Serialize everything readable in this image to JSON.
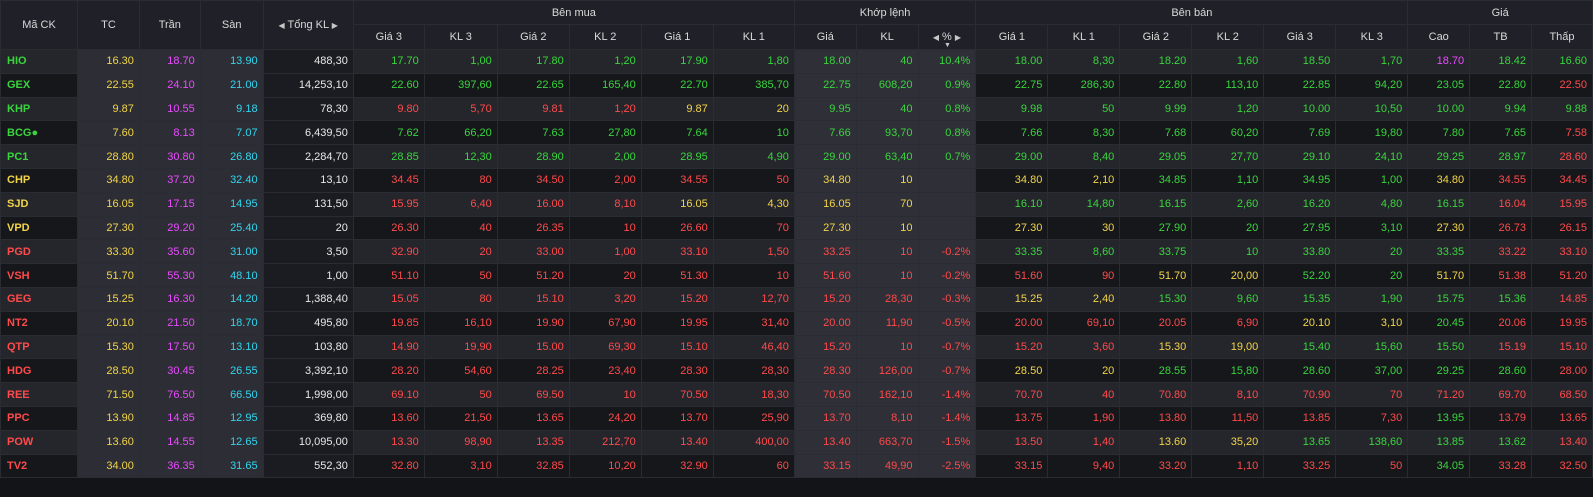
{
  "headers": {
    "symbol": "Mã CK",
    "ref": "TC",
    "ceil": "Trần",
    "floor": "Sàn",
    "total_vol": "Tổng KL",
    "buy": "Bên mua",
    "match": "Khớp lệnh",
    "sell": "Bên bán",
    "price": "Giá",
    "price3": "Giá 3",
    "vol3": "KL 3",
    "price2": "Giá 2",
    "vol2": "KL 2",
    "price1": "Giá 1",
    "vol1": "KL 1",
    "m_price": "Giá",
    "m_vol": "KL",
    "m_pct": "%",
    "high": "Cao",
    "avg": "TB",
    "low": "Thấp"
  },
  "colors": {
    "up": "#39d53d",
    "down": "#ff4a4a",
    "ref": "#f2d449",
    "ceil": "#e94bff",
    "floor": "#30d5ef"
  },
  "rows": [
    {
      "sym": [
        "HIO",
        "up"
      ],
      "tc": "16.30",
      "tran": "18.70",
      "san": "13.90",
      "tkl": "488,30",
      "b3": [
        "17.70",
        "1,00",
        "up"
      ],
      "b2": [
        "17.80",
        "1,20",
        "up"
      ],
      "b1": [
        "17.90",
        "1,80",
        "up"
      ],
      "m": [
        "18.00",
        "40",
        "10.4%",
        "up"
      ],
      "s1": [
        "18.00",
        "8,30",
        "up"
      ],
      "s2": [
        "18.20",
        "1,60",
        "up"
      ],
      "s3": [
        "18.50",
        "1,70",
        "up"
      ],
      "hi": [
        "18.70",
        "ceil"
      ],
      "tb": [
        "18.42",
        "up"
      ],
      "lo": [
        "16.60",
        "up"
      ]
    },
    {
      "sym": [
        "GEX",
        "up"
      ],
      "tc": "22.55",
      "tran": "24.10",
      "san": "21.00",
      "tkl": "14,253,10",
      "b3": [
        "22.60",
        "397,60",
        "up"
      ],
      "b2": [
        "22.65",
        "165,40",
        "up"
      ],
      "b1": [
        "22.70",
        "385,70",
        "up"
      ],
      "m": [
        "22.75",
        "608,20",
        "0.9%",
        "up"
      ],
      "s1": [
        "22.75",
        "286,30",
        "up"
      ],
      "s2": [
        "22.80",
        "113,10",
        "up"
      ],
      "s3": [
        "22.85",
        "94,20",
        "up"
      ],
      "hi": [
        "23.05",
        "up"
      ],
      "tb": [
        "22.80",
        "up"
      ],
      "lo": [
        "22.50",
        "down"
      ]
    },
    {
      "sym": [
        "KHP",
        "up"
      ],
      "tc": "9.87",
      "tran": "10.55",
      "san": "9.18",
      "tkl": "78,30",
      "b3": [
        "9.80",
        "5,70",
        "down"
      ],
      "b2": [
        "9.81",
        "1,20",
        "down"
      ],
      "b1": [
        "9.87",
        "20",
        "ref"
      ],
      "m": [
        "9.95",
        "40",
        "0.8%",
        "up"
      ],
      "s1": [
        "9.98",
        "50",
        "up"
      ],
      "s2": [
        "9.99",
        "1,20",
        "up"
      ],
      "s3": [
        "10.00",
        "10,50",
        "up"
      ],
      "hi": [
        "10.00",
        "up"
      ],
      "tb": [
        "9.94",
        "up"
      ],
      "lo": [
        "9.88",
        "up"
      ]
    },
    {
      "sym": [
        "BCG●",
        "up"
      ],
      "tc": "7.60",
      "tran": "8.13",
      "san": "7.07",
      "tkl": "6,439,50",
      "b3": [
        "7.62",
        "66,20",
        "up"
      ],
      "b2": [
        "7.63",
        "27,80",
        "up"
      ],
      "b1": [
        "7.64",
        "10",
        "up"
      ],
      "m": [
        "7.66",
        "93,70",
        "0.8%",
        "up"
      ],
      "s1": [
        "7.66",
        "8,30",
        "up"
      ],
      "s2": [
        "7.68",
        "60,20",
        "up"
      ],
      "s3": [
        "7.69",
        "19,80",
        "up"
      ],
      "hi": [
        "7.80",
        "up"
      ],
      "tb": [
        "7.65",
        "up"
      ],
      "lo": [
        "7.58",
        "down"
      ]
    },
    {
      "sym": [
        "PC1",
        "up"
      ],
      "tc": "28.80",
      "tran": "30.80",
      "san": "26.80",
      "tkl": "2,284,70",
      "b3": [
        "28.85",
        "12,30",
        "up"
      ],
      "b2": [
        "28.90",
        "2,00",
        "up"
      ],
      "b1": [
        "28.95",
        "4,90",
        "up"
      ],
      "m": [
        "29.00",
        "63,40",
        "0.7%",
        "up"
      ],
      "s1": [
        "29.00",
        "8,40",
        "up"
      ],
      "s2": [
        "29.05",
        "27,70",
        "up"
      ],
      "s3": [
        "29.10",
        "24,10",
        "up"
      ],
      "hi": [
        "29.25",
        "up"
      ],
      "tb": [
        "28.97",
        "up"
      ],
      "lo": [
        "28.60",
        "down"
      ]
    },
    {
      "sym": [
        "CHP",
        "ref"
      ],
      "tc": "34.80",
      "tran": "37.20",
      "san": "32.40",
      "tkl": "13,10",
      "b3": [
        "34.45",
        "80",
        "down"
      ],
      "b2": [
        "34.50",
        "2,00",
        "down"
      ],
      "b1": [
        "34.55",
        "50",
        "down"
      ],
      "m": [
        "34.80",
        "10",
        "",
        "ref"
      ],
      "s1": [
        "34.80",
        "2,10",
        "ref"
      ],
      "s2": [
        "34.85",
        "1,10",
        "up"
      ],
      "s3": [
        "34.95",
        "1,00",
        "up"
      ],
      "hi": [
        "34.80",
        "ref"
      ],
      "tb": [
        "34.55",
        "down"
      ],
      "lo": [
        "34.45",
        "down"
      ]
    },
    {
      "sym": [
        "SJD",
        "ref"
      ],
      "tc": "16.05",
      "tran": "17.15",
      "san": "14.95",
      "tkl": "131,50",
      "b3": [
        "15.95",
        "6,40",
        "down"
      ],
      "b2": [
        "16.00",
        "8,10",
        "down"
      ],
      "b1": [
        "16.05",
        "4,30",
        "ref"
      ],
      "m": [
        "16.05",
        "70",
        "",
        "ref"
      ],
      "s1": [
        "16.10",
        "14,80",
        "up"
      ],
      "s2": [
        "16.15",
        "2,60",
        "up"
      ],
      "s3": [
        "16.20",
        "4,80",
        "up"
      ],
      "hi": [
        "16.15",
        "up"
      ],
      "tb": [
        "16.04",
        "down"
      ],
      "lo": [
        "15.95",
        "down"
      ]
    },
    {
      "sym": [
        "VPD",
        "ref"
      ],
      "tc": "27.30",
      "tran": "29.20",
      "san": "25.40",
      "tkl": "20",
      "b3": [
        "26.30",
        "40",
        "down"
      ],
      "b2": [
        "26.35",
        "10",
        "down"
      ],
      "b1": [
        "26.60",
        "70",
        "down"
      ],
      "m": [
        "27.30",
        "10",
        "",
        "ref"
      ],
      "s1": [
        "27.30",
        "30",
        "ref"
      ],
      "s2": [
        "27.90",
        "20",
        "up"
      ],
      "s3": [
        "27.95",
        "3,10",
        "up"
      ],
      "hi": [
        "27.30",
        "ref"
      ],
      "tb": [
        "26.73",
        "down"
      ],
      "lo": [
        "26.15",
        "down"
      ]
    },
    {
      "sym": [
        "PGD",
        "down"
      ],
      "tc": "33.30",
      "tran": "35.60",
      "san": "31.00",
      "tkl": "3,50",
      "b3": [
        "32.90",
        "20",
        "down"
      ],
      "b2": [
        "33.00",
        "1,00",
        "down"
      ],
      "b1": [
        "33.10",
        "1,50",
        "down"
      ],
      "m": [
        "33.25",
        "10",
        "-0.2%",
        "down"
      ],
      "s1": [
        "33.35",
        "8,60",
        "up"
      ],
      "s2": [
        "33.75",
        "10",
        "up"
      ],
      "s3": [
        "33.80",
        "20",
        "up"
      ],
      "hi": [
        "33.35",
        "up"
      ],
      "tb": [
        "33.22",
        "down"
      ],
      "lo": [
        "33.10",
        "down"
      ]
    },
    {
      "sym": [
        "VSH",
        "down"
      ],
      "tc": "51.70",
      "tran": "55.30",
      "san": "48.10",
      "tkl": "1,00",
      "b3": [
        "51.10",
        "50",
        "down"
      ],
      "b2": [
        "51.20",
        "20",
        "down"
      ],
      "b1": [
        "51.30",
        "10",
        "down"
      ],
      "m": [
        "51.60",
        "10",
        "-0.2%",
        "down"
      ],
      "s1": [
        "51.60",
        "90",
        "down"
      ],
      "s2": [
        "51.70",
        "20,00",
        "ref"
      ],
      "s3": [
        "52.20",
        "20",
        "up"
      ],
      "hi": [
        "51.70",
        "ref"
      ],
      "tb": [
        "51.38",
        "down"
      ],
      "lo": [
        "51.20",
        "down"
      ]
    },
    {
      "sym": [
        "GEG",
        "down"
      ],
      "tc": "15.25",
      "tran": "16.30",
      "san": "14.20",
      "tkl": "1,388,40",
      "b3": [
        "15.05",
        "80",
        "down"
      ],
      "b2": [
        "15.10",
        "3,20",
        "down"
      ],
      "b1": [
        "15.20",
        "12,70",
        "down"
      ],
      "m": [
        "15.20",
        "28,30",
        "-0.3%",
        "down"
      ],
      "s1": [
        "15.25",
        "2,40",
        "ref"
      ],
      "s2": [
        "15.30",
        "9,60",
        "up"
      ],
      "s3": [
        "15.35",
        "1,90",
        "up"
      ],
      "hi": [
        "15.75",
        "up"
      ],
      "tb": [
        "15.36",
        "up"
      ],
      "lo": [
        "14.85",
        "down"
      ]
    },
    {
      "sym": [
        "NT2",
        "down"
      ],
      "tc": "20.10",
      "tran": "21.50",
      "san": "18.70",
      "tkl": "495,80",
      "b3": [
        "19.85",
        "16,10",
        "down"
      ],
      "b2": [
        "19.90",
        "67,90",
        "down"
      ],
      "b1": [
        "19.95",
        "31,40",
        "down"
      ],
      "m": [
        "20.00",
        "11,90",
        "-0.5%",
        "down"
      ],
      "s1": [
        "20.00",
        "69,10",
        "down"
      ],
      "s2": [
        "20.05",
        "6,90",
        "down"
      ],
      "s3": [
        "20.10",
        "3,10",
        "ref"
      ],
      "hi": [
        "20.45",
        "up"
      ],
      "tb": [
        "20.06",
        "down"
      ],
      "lo": [
        "19.95",
        "down"
      ]
    },
    {
      "sym": [
        "QTP",
        "down"
      ],
      "tc": "15.30",
      "tran": "17.50",
      "san": "13.10",
      "tkl": "103,80",
      "b3": [
        "14.90",
        "19,90",
        "down"
      ],
      "b2": [
        "15.00",
        "69,30",
        "down"
      ],
      "b1": [
        "15.10",
        "46,40",
        "down"
      ],
      "m": [
        "15.20",
        "10",
        "-0.7%",
        "down"
      ],
      "s1": [
        "15.20",
        "3,60",
        "down"
      ],
      "s2": [
        "15.30",
        "19,00",
        "ref"
      ],
      "s3": [
        "15.40",
        "15,60",
        "up"
      ],
      "hi": [
        "15.50",
        "up"
      ],
      "tb": [
        "15.19",
        "down"
      ],
      "lo": [
        "15.10",
        "down"
      ]
    },
    {
      "sym": [
        "HDG",
        "down"
      ],
      "tc": "28.50",
      "tran": "30.45",
      "san": "26.55",
      "tkl": "3,392,10",
      "b3": [
        "28.20",
        "54,60",
        "down"
      ],
      "b2": [
        "28.25",
        "23,40",
        "down"
      ],
      "b1": [
        "28.30",
        "28,30",
        "down"
      ],
      "m": [
        "28.30",
        "126,00",
        "-0.7%",
        "down"
      ],
      "s1": [
        "28.50",
        "20",
        "ref"
      ],
      "s2": [
        "28.55",
        "15,80",
        "up"
      ],
      "s3": [
        "28.60",
        "37,00",
        "up"
      ],
      "hi": [
        "29.25",
        "up"
      ],
      "tb": [
        "28.60",
        "up"
      ],
      "lo": [
        "28.00",
        "down"
      ]
    },
    {
      "sym": [
        "REE",
        "down"
      ],
      "tc": "71.50",
      "tran": "76.50",
      "san": "66.50",
      "tkl": "1,998,00",
      "b3": [
        "69.10",
        "50",
        "down"
      ],
      "b2": [
        "69.50",
        "10",
        "down"
      ],
      "b1": [
        "70.50",
        "18,30",
        "down"
      ],
      "m": [
        "70.50",
        "162,10",
        "-1.4%",
        "down"
      ],
      "s1": [
        "70.70",
        "40",
        "down"
      ],
      "s2": [
        "70.80",
        "8,10",
        "down"
      ],
      "s3": [
        "70.90",
        "70",
        "down"
      ],
      "hi": [
        "71.20",
        "down"
      ],
      "tb": [
        "69.70",
        "down"
      ],
      "lo": [
        "68.50",
        "down"
      ]
    },
    {
      "sym": [
        "PPC",
        "down"
      ],
      "tc": "13.90",
      "tran": "14.85",
      "san": "12.95",
      "tkl": "369,80",
      "b3": [
        "13.60",
        "21,50",
        "down"
      ],
      "b2": [
        "13.65",
        "24,20",
        "down"
      ],
      "b1": [
        "13.70",
        "25,90",
        "down"
      ],
      "m": [
        "13.70",
        "8,10",
        "-1.4%",
        "down"
      ],
      "s1": [
        "13.75",
        "1,90",
        "down"
      ],
      "s2": [
        "13.80",
        "11,50",
        "down"
      ],
      "s3": [
        "13.85",
        "7,30",
        "down"
      ],
      "hi": [
        "13.95",
        "up"
      ],
      "tb": [
        "13.79",
        "down"
      ],
      "lo": [
        "13.65",
        "down"
      ]
    },
    {
      "sym": [
        "POW",
        "down"
      ],
      "tc": "13.60",
      "tran": "14.55",
      "san": "12.65",
      "tkl": "10,095,00",
      "b3": [
        "13.30",
        "98,90",
        "down"
      ],
      "b2": [
        "13.35",
        "212,70",
        "down"
      ],
      "b1": [
        "13.40",
        "400,00",
        "down"
      ],
      "m": [
        "13.40",
        "663,70",
        "-1.5%",
        "down"
      ],
      "s1": [
        "13.50",
        "1,40",
        "down"
      ],
      "s2": [
        "13.60",
        "35,20",
        "ref"
      ],
      "s3": [
        "13.65",
        "138,60",
        "up"
      ],
      "hi": [
        "13.85",
        "up"
      ],
      "tb": [
        "13.62",
        "up"
      ],
      "lo": [
        "13.40",
        "down"
      ]
    },
    {
      "sym": [
        "TV2",
        "down"
      ],
      "tc": "34.00",
      "tran": "36.35",
      "san": "31.65",
      "tkl": "552,30",
      "b3": [
        "32.80",
        "3,10",
        "down"
      ],
      "b2": [
        "32.85",
        "10,20",
        "down"
      ],
      "b1": [
        "32.90",
        "60",
        "down"
      ],
      "m": [
        "33.15",
        "49,90",
        "-2.5%",
        "down"
      ],
      "s1": [
        "33.15",
        "9,40",
        "down"
      ],
      "s2": [
        "33.20",
        "1,10",
        "down"
      ],
      "s3": [
        "33.25",
        "50",
        "down"
      ],
      "hi": [
        "34.05",
        "up"
      ],
      "tb": [
        "33.28",
        "down"
      ],
      "lo": [
        "32.50",
        "down"
      ]
    }
  ]
}
